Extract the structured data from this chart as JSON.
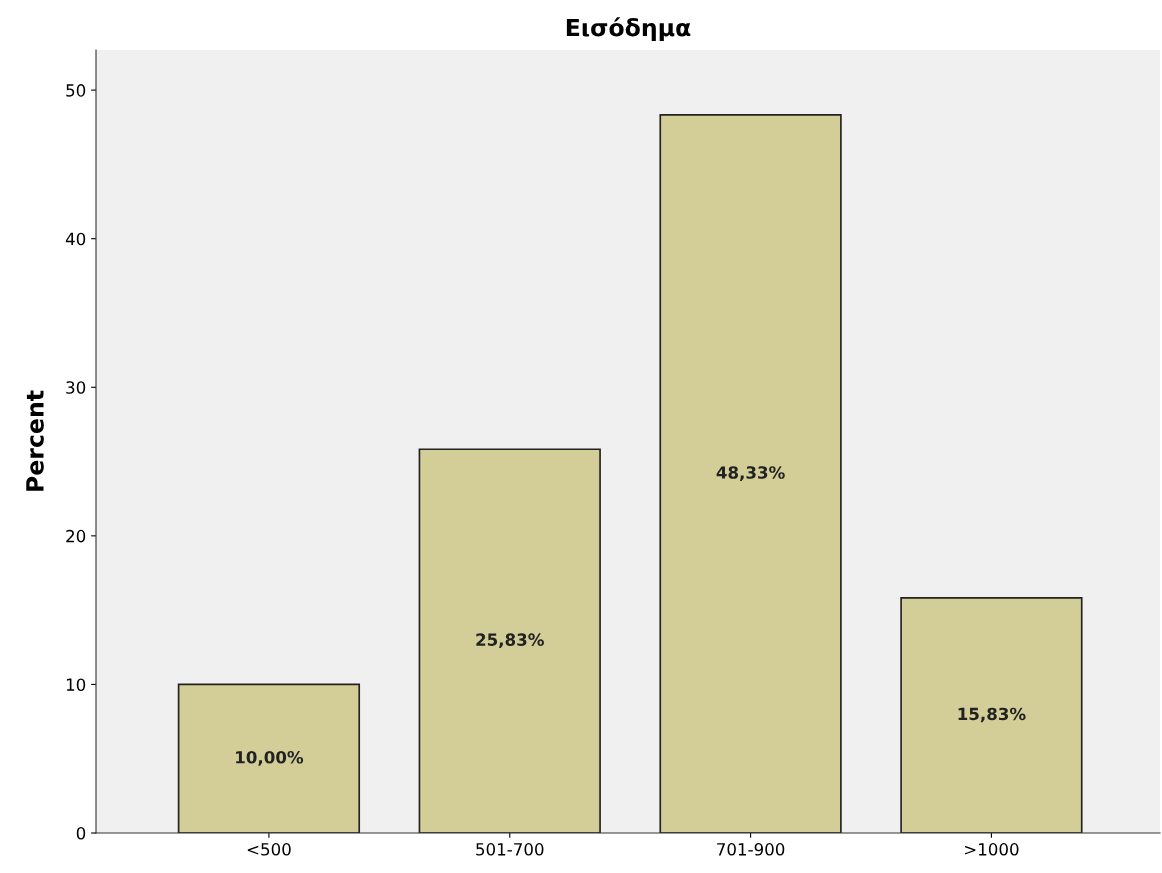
{
  "chart_data": {
    "type": "bar",
    "title": "Εισόδημα",
    "ylabel": "Percent",
    "categories": [
      "<500",
      "501-700",
      "701-900",
      ">1000"
    ],
    "values": [
      10.0,
      25.83,
      48.33,
      15.83
    ],
    "value_labels": [
      "10,00%",
      "25,83%",
      "48,33%",
      "15,83%"
    ],
    "color": "#d3ce97",
    "ylim": [
      0,
      52.7
    ],
    "yticks": [
      0,
      10,
      20,
      30,
      40,
      50
    ],
    "grid": false,
    "legend": false
  }
}
